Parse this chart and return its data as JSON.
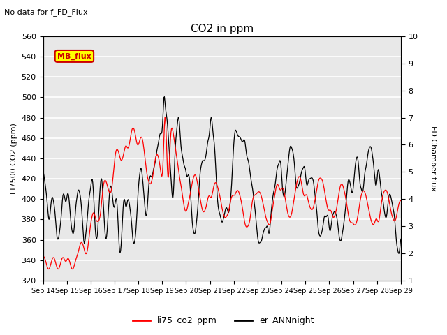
{
  "title": "CO2 in ppm",
  "subtitle": "No data for f_FD_Flux",
  "ylabel_left": "LI7500 CO2 (ppm)",
  "ylabel_right": "FD Chamber flux",
  "ylim_left": [
    320,
    560
  ],
  "ylim_right": [
    1.0,
    10.0
  ],
  "yticks_left": [
    320,
    340,
    360,
    380,
    400,
    420,
    440,
    460,
    480,
    500,
    520,
    540,
    560
  ],
  "yticks_right": [
    1.0,
    2.0,
    3.0,
    4.0,
    5.0,
    6.0,
    7.0,
    8.0,
    9.0,
    10.0
  ],
  "xtick_labels": [
    "Sep 14",
    "Sep 15",
    "Sep 16",
    "Sep 17",
    "Sep 18",
    "Sep 19",
    "Sep 20",
    "Sep 21",
    "Sep 22",
    "Sep 23",
    "Sep 24",
    "Sep 25",
    "Sep 26",
    "Sep 27",
    "Sep 28",
    "Sep 29"
  ],
  "legend_labels": [
    "li75_co2_ppm",
    "er_ANNnight"
  ],
  "line1_color": "#ff0000",
  "line2_color": "#000000",
  "background_color": "#e8e8e8",
  "grid_color": "#ffffff",
  "annotation_box_text": "MB_flux",
  "annotation_box_color": "#ffff00",
  "annotation_box_edge": "#cc0000"
}
